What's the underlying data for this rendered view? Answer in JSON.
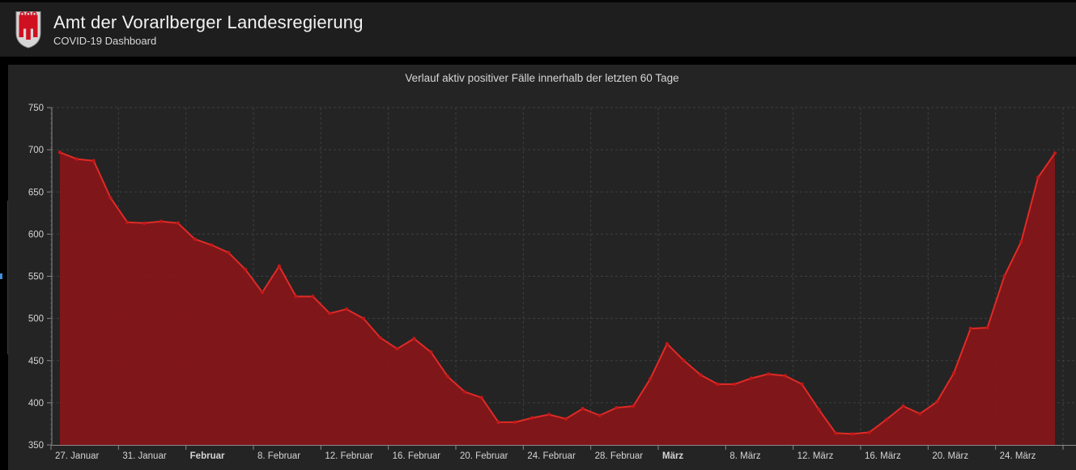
{
  "header": {
    "title": "Amt der Vorarlberger Landesregierung",
    "subtitle": "COVID-19 Dashboard",
    "logo": "vorarlberg-coat-of-arms"
  },
  "left_edge": {
    "indicator": "collapsed-panel-blue-indicator"
  },
  "chart_data": {
    "type": "area",
    "title": "Verlauf aktiv positiver Fälle innerhalb der letzten 60 Tage",
    "x_unit": "day",
    "x_range_days": 60,
    "first_point_label": "27. Januar",
    "values": [
      697,
      689,
      687,
      643,
      614,
      613,
      615,
      613,
      594,
      587,
      578,
      558,
      531,
      562,
      526,
      526,
      506,
      511,
      500,
      477,
      464,
      476,
      460,
      431,
      413,
      406,
      377,
      377,
      382,
      386,
      381,
      393,
      385,
      394,
      396,
      428,
      470,
      450,
      433,
      422,
      422,
      429,
      434,
      432,
      422,
      392,
      364,
      363,
      365,
      380,
      396,
      387,
      401,
      435,
      488,
      489,
      550,
      591,
      667,
      696
    ],
    "x_ticks": [
      {
        "day": 0,
        "label": "27. Januar",
        "bold": false
      },
      {
        "day": 4,
        "label": "31. Januar",
        "bold": false
      },
      {
        "day": 8,
        "label": "Februar",
        "bold": true
      },
      {
        "day": 12,
        "label": "8. Februar",
        "bold": false
      },
      {
        "day": 16,
        "label": "12. Februar",
        "bold": false
      },
      {
        "day": 20,
        "label": "16. Februar",
        "bold": false
      },
      {
        "day": 24,
        "label": "20. Februar",
        "bold": false
      },
      {
        "day": 28,
        "label": "24. Februar",
        "bold": false
      },
      {
        "day": 32,
        "label": "28. Februar",
        "bold": false
      },
      {
        "day": 36,
        "label": "März",
        "bold": true
      },
      {
        "day": 40,
        "label": "8. März",
        "bold": false
      },
      {
        "day": 44,
        "label": "12. März",
        "bold": false
      },
      {
        "day": 48,
        "label": "16. März",
        "bold": false
      },
      {
        "day": 52,
        "label": "20. März",
        "bold": false
      },
      {
        "day": 56,
        "label": "24. März",
        "bold": false
      }
    ],
    "y_ticks": [
      750,
      700,
      650,
      600,
      550,
      500,
      450,
      400,
      350
    ],
    "ylim": [
      350,
      750
    ],
    "grid": "dashed",
    "legend": "none",
    "colors": {
      "area_fill": "#8a1518",
      "line": "#e12a26",
      "marker": "#c01818",
      "grid": "#3f3f3f",
      "axis": "#8a8a8a",
      "tick_label": "#d4d4d4",
      "panel_bg": "#242424",
      "page_bg": "#000000",
      "header_bg": "#1e1e1e",
      "accent_blue": "#3f8fd9",
      "logo_red": "#cf1020",
      "logo_silver": "#d6d6d6"
    }
  }
}
